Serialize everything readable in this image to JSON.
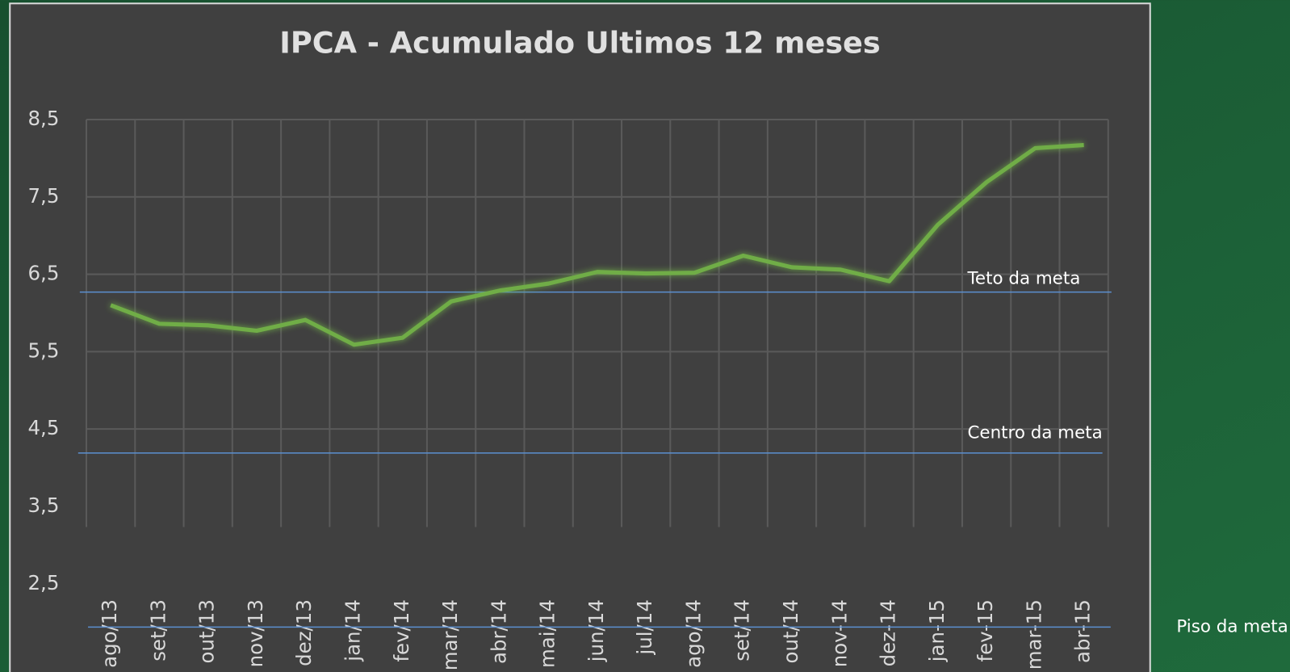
{
  "chart_data": {
    "type": "line",
    "title": "IPCA - Acumulado Ultimos 12 meses",
    "categories": [
      "ago/13",
      "set/13",
      "out/13",
      "nov/13",
      "dez/13",
      "jan/14",
      "fev/14",
      "mar/14",
      "abr/14",
      "mai/14",
      "jun/14",
      "jul/14",
      "ago/14",
      "set/14",
      "out/14",
      "nov-14",
      "dez-14",
      "jan-15",
      "fev-15",
      "mar-15",
      "abr-15"
    ],
    "series": [
      {
        "name": "IPCA",
        "color": "#70ad47",
        "values": [
          6.1,
          5.86,
          5.84,
          5.77,
          5.91,
          5.59,
          5.68,
          6.15,
          6.29,
          6.38,
          6.53,
          6.51,
          6.52,
          6.74,
          6.59,
          6.56,
          6.41,
          7.14,
          7.69,
          8.13,
          8.17
        ]
      }
    ],
    "ylim": [
      2.5,
      8.5
    ],
    "yticks": [
      {
        "value": 8.5,
        "label": "8,5"
      },
      {
        "value": 7.5,
        "label": "7,5"
      },
      {
        "value": 6.5,
        "label": "6,5"
      },
      {
        "value": 5.5,
        "label": "5,5"
      },
      {
        "value": 4.5,
        "label": "4,5"
      },
      {
        "value": 3.5,
        "label": "3,5"
      },
      {
        "value": 2.5,
        "label": "2,5"
      }
    ],
    "grid": true,
    "reference_lines": [
      {
        "label": "Teto da meta",
        "value": 6.27,
        "color": "#5b8fd0"
      },
      {
        "label": "Centro da meta",
        "value": 4.19,
        "color": "#5b8fd0"
      },
      {
        "label": "Piso da meta",
        "value": 1.94,
        "color": "#5b8fd0"
      }
    ]
  }
}
